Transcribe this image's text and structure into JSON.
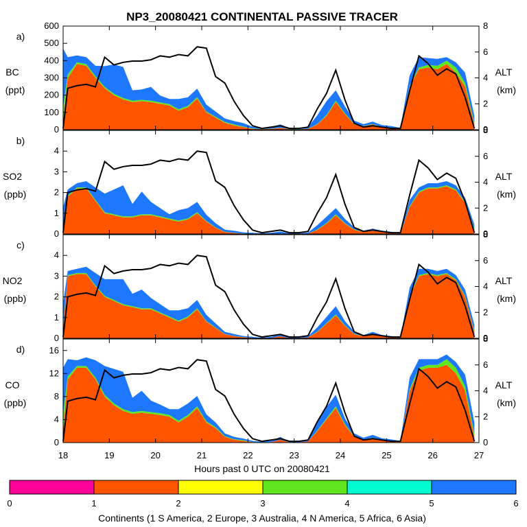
{
  "title": "NP3_20080421 CONTINENTAL PASSIVE TRACER",
  "chart_data": {
    "type": "area",
    "title": "NP3_20080421 CONTINENTAL PASSIVE TRACER",
    "xlabel": "Hours past 0 UTC on 20080421",
    "xlim": [
      18,
      27
    ],
    "x_ticks": [
      "18",
      "19",
      "20",
      "21",
      "22",
      "23",
      "24",
      "25",
      "26",
      "27"
    ],
    "x": [
      18.0,
      18.1,
      18.3,
      18.5,
      18.7,
      18.9,
      19.1,
      19.3,
      19.5,
      19.7,
      19.9,
      20.1,
      20.3,
      20.5,
      20.7,
      20.9,
      21.1,
      21.3,
      21.5,
      21.7,
      21.9,
      22.1,
      22.3,
      22.5,
      22.7,
      22.9,
      23.1,
      23.3,
      23.5,
      23.7,
      23.9,
      24.1,
      24.3,
      24.5,
      24.7,
      24.9,
      25.1,
      25.3,
      25.5,
      25.7,
      25.9,
      26.1,
      26.3,
      26.5,
      26.7,
      26.9
    ],
    "altitude": {
      "name": "ALT",
      "ylabel": [
        "ALT",
        "(km)"
      ],
      "ylim": [
        0,
        8
      ],
      "ticks": [
        "0",
        "2",
        "4",
        "6",
        "8"
      ],
      "values": [
        0.1,
        3.2,
        3.4,
        3.5,
        3.3,
        5.6,
        5.0,
        5.2,
        5.3,
        5.3,
        5.4,
        5.7,
        5.6,
        5.8,
        5.7,
        6.4,
        6.3,
        4.1,
        3.6,
        2.2,
        1.1,
        0.3,
        0.1,
        0.2,
        0.3,
        0.1,
        0.1,
        0.2,
        1.6,
        2.8,
        4.6,
        2.3,
        0.5,
        0.2,
        0.3,
        0.2,
        0.1,
        0.1,
        3.0,
        5.7,
        5.1,
        4.2,
        4.7,
        4.3,
        2.5,
        0.1
      ]
    },
    "legend": {
      "title": "Continents (1 S America, 2 Europe, 3 Australia, 4 N America, 5 Africa, 6 Asia)",
      "ticks": [
        "0",
        "1",
        "2",
        "3",
        "4",
        "5",
        "6"
      ],
      "colors": [
        "#ff0098",
        "#ff5500",
        "#ffff00",
        "#60e620",
        "#00fbd0",
        "#1e78ff"
      ]
    },
    "panels": [
      {
        "letter": "a)",
        "species": "BC",
        "unit": "(ppt)",
        "ylim": [
          0,
          600
        ],
        "ticks": [
          "0",
          "100",
          "200",
          "300",
          "400",
          "500",
          "600"
        ],
        "series": [
          {
            "name": "S America",
            "color": "#ff5500",
            "values": [
              50,
              300,
              380,
              370,
              300,
              240,
              200,
              175,
              160,
              165,
              160,
              150,
              140,
              110,
              130,
              180,
              100,
              70,
              40,
              25,
              15,
              5,
              3,
              5,
              10,
              3,
              2,
              5,
              30,
              80,
              160,
              90,
              30,
              20,
              30,
              15,
              10,
              5,
              250,
              350,
              360,
              350,
              380,
              330,
              250,
              30
            ]
          },
          {
            "name": "N America",
            "color": "#60e620",
            "values": [
              80,
              20,
              10,
              10,
              10,
              8,
              8,
              8,
              8,
              8,
              8,
              8,
              8,
              8,
              8,
              8,
              5,
              5,
              5,
              5,
              3,
              2,
              1,
              1,
              1,
              1,
              1,
              1,
              3,
              5,
              8,
              5,
              3,
              2,
              2,
              2,
              1,
              1,
              5,
              10,
              15,
              20,
              20,
              30,
              20,
              10
            ]
          },
          {
            "name": "Asia",
            "color": "#1e78ff",
            "values": [
              340,
              100,
              40,
              40,
              60,
              120,
              170,
              180,
              60,
              60,
              80,
              40,
              30,
              60,
              50,
              50,
              40,
              30,
              20,
              20,
              20,
              10,
              5,
              10,
              20,
              5,
              5,
              10,
              50,
              80,
              60,
              40,
              20,
              10,
              15,
              10,
              10,
              5,
              60,
              60,
              40,
              40,
              20,
              30,
              60,
              40
            ]
          }
        ]
      },
      {
        "letter": "b)",
        "species": "SO2",
        "unit": "(ppb)",
        "ylim": [
          0,
          5
        ],
        "ticks": [
          "0",
          "1",
          "2",
          "3",
          "4"
        ],
        "series": [
          {
            "name": "S America",
            "color": "#ff5500",
            "values": [
              0.3,
              1.8,
              2.2,
              2.2,
              1.6,
              1.0,
              0.9,
              0.8,
              0.8,
              0.9,
              0.9,
              0.8,
              0.7,
              0.6,
              0.7,
              1.0,
              0.6,
              0.3,
              0.1,
              0.05,
              0.02,
              0.01,
              0.01,
              0.01,
              0.02,
              0.01,
              0.01,
              0.02,
              0.2,
              0.5,
              0.9,
              0.5,
              0.2,
              0.1,
              0.15,
              0.1,
              0.05,
              0.02,
              1.3,
              2.0,
              2.2,
              2.2,
              2.3,
              2.1,
              1.5,
              0.2
            ]
          },
          {
            "name": "N America",
            "color": "#60e620",
            "values": [
              0.1,
              0.05,
              0.05,
              0.05,
              0.05,
              0.05,
              0.05,
              0.05,
              0.05,
              0.05,
              0.05,
              0.05,
              0.05,
              0.05,
              0.05,
              0.05,
              0.03,
              0.02,
              0.01,
              0.01,
              0.01,
              0.0,
              0.0,
              0.0,
              0.0,
              0.0,
              0.0,
              0.0,
              0.02,
              0.03,
              0.05,
              0.03,
              0.02,
              0.01,
              0.01,
              0.01,
              0.01,
              0.0,
              0.05,
              0.05,
              0.05,
              0.05,
              0.05,
              0.05,
              0.05,
              0.05
            ]
          },
          {
            "name": "Asia",
            "color": "#1e78ff",
            "values": [
              0.9,
              0.3,
              0.2,
              0.3,
              0.6,
              0.9,
              1.2,
              1.5,
              0.6,
              1.1,
              0.6,
              0.4,
              0.2,
              0.5,
              0.5,
              0.5,
              0.3,
              0.2,
              0.1,
              0.1,
              0.05,
              0.05,
              0.02,
              0.05,
              0.1,
              0.02,
              0.02,
              0.05,
              0.2,
              0.3,
              0.3,
              0.2,
              0.1,
              0.05,
              0.1,
              0.05,
              0.05,
              0.02,
              0.3,
              0.2,
              0.2,
              0.2,
              0.2,
              0.2,
              0.2,
              0.2
            ]
          }
        ]
      },
      {
        "letter": "c)",
        "species": "NO2",
        "unit": "(ppb)",
        "ylim": [
          0,
          5
        ],
        "ticks": [
          "0",
          "1",
          "2",
          "3",
          "4"
        ],
        "series": [
          {
            "name": "S America",
            "color": "#ff5500",
            "values": [
              0.5,
              3.0,
              3.1,
              3.1,
              2.5,
              2.0,
              1.8,
              1.6,
              1.5,
              1.4,
              1.4,
              1.2,
              1.0,
              0.8,
              1.0,
              1.4,
              0.8,
              0.5,
              0.2,
              0.1,
              0.05,
              0.02,
              0.01,
              0.02,
              0.1,
              0.01,
              0.01,
              0.05,
              0.3,
              0.7,
              1.1,
              0.6,
              0.2,
              0.1,
              0.2,
              0.1,
              0.05,
              0.02,
              2.0,
              3.0,
              3.1,
              3.0,
              3.1,
              2.8,
              2.0,
              0.3
            ]
          },
          {
            "name": "N America",
            "color": "#60e620",
            "values": [
              0.1,
              0.05,
              0.05,
              0.05,
              0.05,
              0.05,
              0.05,
              0.05,
              0.05,
              0.05,
              0.05,
              0.05,
              0.05,
              0.05,
              0.05,
              0.05,
              0.03,
              0.02,
              0.01,
              0.01,
              0.01,
              0.0,
              0.0,
              0.0,
              0.0,
              0.0,
              0.0,
              0.0,
              0.02,
              0.03,
              0.05,
              0.03,
              0.02,
              0.01,
              0.01,
              0.01,
              0.01,
              0.0,
              0.05,
              0.05,
              0.05,
              0.05,
              0.05,
              0.05,
              0.05,
              0.05
            ]
          },
          {
            "name": "Asia",
            "color": "#1e78ff",
            "values": [
              1.1,
              0.2,
              0.2,
              0.3,
              0.6,
              0.8,
              1.0,
              1.2,
              0.6,
              0.9,
              0.5,
              0.4,
              0.3,
              0.5,
              0.4,
              0.4,
              0.3,
              0.2,
              0.1,
              0.1,
              0.05,
              0.05,
              0.02,
              0.05,
              0.1,
              0.02,
              0.02,
              0.05,
              0.2,
              0.3,
              0.4,
              0.2,
              0.1,
              0.05,
              0.1,
              0.05,
              0.05,
              0.02,
              0.4,
              0.3,
              0.2,
              0.2,
              0.2,
              0.2,
              0.3,
              0.3
            ]
          }
        ]
      },
      {
        "letter": "d)",
        "species": "CO",
        "unit": "(ppb)",
        "ylim": [
          0,
          18
        ],
        "ticks": [
          "0",
          "4",
          "8",
          "12",
          "16"
        ],
        "series": [
          {
            "name": "S America",
            "color": "#ff5500",
            "values": [
              2.0,
              11.0,
              13.0,
              13.0,
              11.0,
              8.0,
              6.5,
              5.5,
              5.0,
              5.2,
              5.0,
              4.8,
              4.5,
              3.5,
              4.5,
              6.0,
              3.5,
              2.5,
              1.0,
              0.5,
              0.3,
              0.1,
              0.05,
              0.1,
              0.5,
              0.05,
              0.05,
              0.2,
              2.0,
              4.0,
              6.0,
              3.0,
              1.0,
              0.5,
              0.8,
              0.4,
              0.2,
              0.1,
              9.0,
              12.5,
              13.0,
              13.0,
              13.5,
              12.0,
              9.0,
              1.0
            ]
          },
          {
            "name": "N America",
            "color": "#60e620",
            "values": [
              3.0,
              0.5,
              0.3,
              0.3,
              0.3,
              0.3,
              0.3,
              0.3,
              0.3,
              0.3,
              0.3,
              0.3,
              0.3,
              0.3,
              0.3,
              0.3,
              0.2,
              0.2,
              0.1,
              0.1,
              0.1,
              0.0,
              0.0,
              0.0,
              0.0,
              0.0,
              0.0,
              0.0,
              0.1,
              0.2,
              0.3,
              0.2,
              0.1,
              0.05,
              0.05,
              0.05,
              0.05,
              0.0,
              0.3,
              0.5,
              0.5,
              0.5,
              1.0,
              1.0,
              0.8,
              0.5
            ]
          },
          {
            "name": "Asia",
            "color": "#1e78ff",
            "values": [
              8.0,
              3.0,
              1.0,
              1.5,
              3.0,
              5.0,
              6.0,
              6.5,
              2.5,
              3.5,
              2.0,
              1.5,
              1.0,
              2.0,
              2.0,
              1.8,
              1.2,
              0.8,
              0.5,
              0.4,
              0.3,
              0.2,
              0.1,
              0.2,
              0.5,
              0.1,
              0.1,
              0.3,
              1.5,
              2.0,
              2.0,
              1.0,
              0.5,
              0.3,
              0.5,
              0.3,
              0.3,
              0.2,
              2.0,
              1.5,
              1.0,
              1.0,
              0.8,
              1.0,
              2.0,
              2.0
            ]
          }
        ]
      }
    ]
  }
}
